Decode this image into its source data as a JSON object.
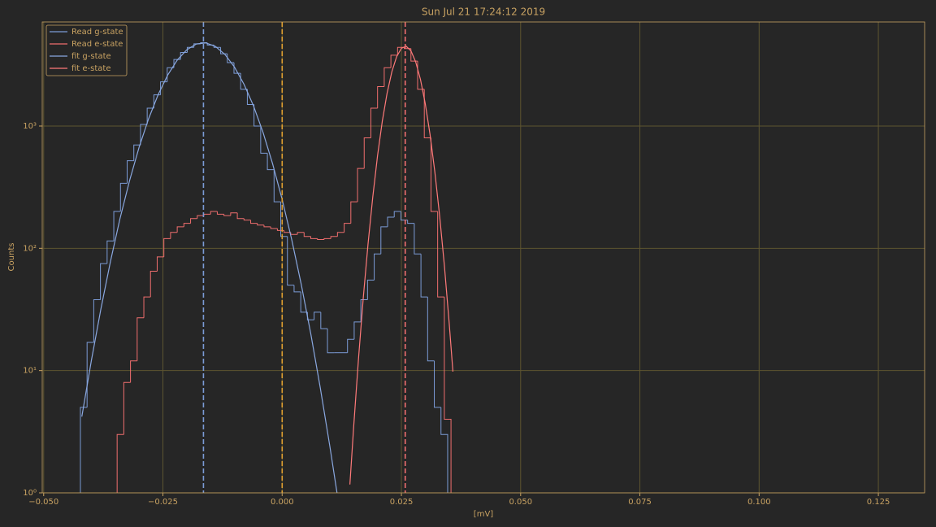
{
  "chart_data": {
    "type": "histogram",
    "title": "Sun Jul 21 17:24:12 2019",
    "xlabel": "[mV]",
    "ylabel": "Counts",
    "yscale": "log",
    "grid": true,
    "legend": "upper left",
    "xlim": [
      -0.0503,
      0.1347
    ],
    "ylim": [
      1,
      7100
    ],
    "xticks": [
      {
        "value": -0.05,
        "label": "−0.050"
      },
      {
        "value": -0.025,
        "label": "−0.025"
      },
      {
        "value": 0,
        "label": "0.000"
      },
      {
        "value": 0.025,
        "label": "0.025"
      },
      {
        "value": 0.05,
        "label": "0.050"
      },
      {
        "value": 0.075,
        "label": "0.075"
      },
      {
        "value": 0.1,
        "label": "0.100"
      },
      {
        "value": 0.125,
        "label": "0.125"
      }
    ],
    "yticks": [
      {
        "value": 1,
        "label": "10⁰"
      },
      {
        "value": 10,
        "label": "10¹"
      },
      {
        "value": 100,
        "label": "10²"
      },
      {
        "value": 1000,
        "label": "10³"
      }
    ],
    "series": [
      {
        "name": "Read g-state",
        "color": "#7b9bd6",
        "bins": [
          -0.0423,
          -0.0409,
          -0.0395,
          -0.0381,
          -0.0367,
          -0.0353,
          -0.0339,
          -0.0325,
          -0.0311,
          -0.0297,
          -0.0283,
          -0.0269,
          -0.0255,
          -0.0241,
          -0.0227,
          -0.0213,
          -0.0199,
          -0.0185,
          -0.0171,
          -0.0157,
          -0.0143,
          -0.0129,
          -0.0115,
          -0.0101,
          -0.0087,
          -0.0073,
          -0.0059,
          -0.0045,
          -0.0031,
          -0.0017,
          -0.0003,
          0.0011,
          0.0025,
          0.0039,
          0.0053,
          0.0067,
          0.0081,
          0.0095,
          0.0109,
          0.0123,
          0.0137,
          0.0151,
          0.0165,
          0.0179,
          0.0193,
          0.0207,
          0.0221,
          0.0235,
          0.0249,
          0.0263,
          0.0277,
          0.0291,
          0.0305,
          0.0319,
          0.0333,
          0.0347
        ],
        "values": [
          5,
          17,
          38,
          75,
          115,
          200,
          340,
          520,
          700,
          1030,
          1400,
          1800,
          2300,
          3000,
          3500,
          4000,
          4400,
          4700,
          4800,
          4600,
          4400,
          3900,
          3300,
          2700,
          2000,
          1500,
          1000,
          600,
          440,
          240,
          125,
          50,
          44,
          30,
          26,
          30,
          22,
          14,
          14,
          14,
          18,
          25,
          38,
          55,
          90,
          150,
          180,
          200,
          170,
          160,
          90,
          40,
          12,
          5,
          3
        ]
      },
      {
        "name": "Read e-state",
        "color": "#f06e6e",
        "bins": [
          -0.0346,
          -0.0332,
          -0.0318,
          -0.0304,
          -0.029,
          -0.0276,
          -0.0262,
          -0.0248,
          -0.0234,
          -0.022,
          -0.0206,
          -0.0192,
          -0.0178,
          -0.0164,
          -0.015,
          -0.0136,
          -0.0122,
          -0.0108,
          -0.0094,
          -0.008,
          -0.0066,
          -0.0052,
          -0.0038,
          -0.0024,
          -0.001,
          0.0004,
          0.0018,
          0.0032,
          0.0046,
          0.006,
          0.0074,
          0.0088,
          0.0102,
          0.0116,
          0.013,
          0.0144,
          0.0158,
          0.0172,
          0.0186,
          0.02,
          0.0214,
          0.0228,
          0.0242,
          0.0256,
          0.027,
          0.0284,
          0.0298,
          0.0312,
          0.0326,
          0.034,
          0.0354
        ],
        "values": [
          3,
          8,
          12,
          27,
          40,
          65,
          85,
          120,
          135,
          150,
          160,
          175,
          185,
          190,
          200,
          190,
          185,
          195,
          175,
          170,
          160,
          155,
          150,
          145,
          140,
          135,
          130,
          135,
          125,
          120,
          118,
          120,
          125,
          135,
          160,
          240,
          450,
          800,
          1400,
          2100,
          3000,
          3800,
          4400,
          4300,
          3400,
          2000,
          800,
          200,
          40,
          4
        ]
      }
    ],
    "fits": [
      {
        "name": "fit g-state",
        "color": "#8aa8e0",
        "x": [
          -0.042,
          -0.04,
          -0.038,
          -0.036,
          -0.034,
          -0.032,
          -0.03,
          -0.028,
          -0.026,
          -0.024,
          -0.022,
          -0.02,
          -0.018,
          -0.016,
          -0.014,
          -0.012,
          -0.01,
          -0.008,
          -0.006,
          -0.004,
          -0.002,
          0,
          0.002,
          0.004,
          0.006,
          0.008,
          0.01,
          0.0115
        ],
        "values": [
          4.2,
          12.1,
          32,
          78,
          175,
          357,
          669,
          1148,
          1807,
          2611,
          3461,
          4203,
          4686,
          4787,
          4484,
          3855,
          3039,
          2196,
          1459,
          885,
          491,
          251,
          118,
          50.7,
          20,
          7.2,
          2.4,
          1.0
        ]
      },
      {
        "name": "fit e-state",
        "color": "#ff7a7a",
        "x": [
          0.0142,
          0.015,
          0.016,
          0.017,
          0.018,
          0.019,
          0.02,
          0.021,
          0.022,
          0.023,
          0.024,
          0.025,
          0.026,
          0.027,
          0.028,
          0.029,
          0.03,
          0.031,
          0.032,
          0.033,
          0.034,
          0.035,
          0.0358
        ],
        "values": [
          1.17,
          3.5,
          12.4,
          39,
          108,
          263,
          573,
          1098,
          1856,
          2781,
          3689,
          4327,
          4497,
          4121,
          3343,
          2402,
          1526,
          856,
          425,
          187,
          73,
          25,
          9.8
        ]
      }
    ],
    "vlines": [
      {
        "x": -0.0165,
        "color": "#7b9bd6"
      },
      {
        "x": 0,
        "color": "#e0a030"
      },
      {
        "x": 0.0258,
        "color": "#f06e6e"
      }
    ]
  }
}
